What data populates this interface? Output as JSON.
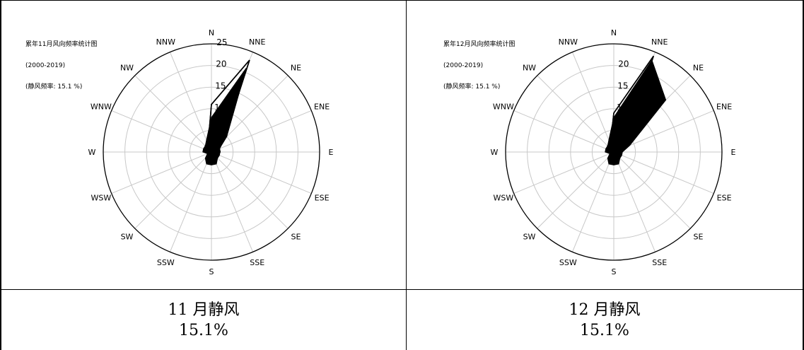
{
  "panels": [
    {
      "caption_month": "11 月静风",
      "caption_value": "15.1%",
      "chart_data": {
        "type": "wind-rose",
        "title": "累年11月风向频率统计图",
        "subtitle": "(2000-2019)",
        "calm_label": "(静风频率: 15.1 %)",
        "directions": [
          "N",
          "NNE",
          "NE",
          "ENE",
          "E",
          "ESE",
          "SE",
          "SSE",
          "S",
          "SSW",
          "SW",
          "WSW",
          "W",
          "WNW",
          "NW",
          "NNW"
        ],
        "radial_ticks": [
          5,
          10,
          15,
          20,
          25
        ],
        "rmax": 25,
        "series": [
          {
            "style": "outline",
            "values": [
              11,
              23,
              4,
              2,
              2,
              1,
              1,
              2,
              2,
              2,
              1,
              1,
              1,
              1,
              2,
              2
            ]
          },
          {
            "style": "filled",
            "values": [
              8,
              21,
              5,
              2,
              2,
              2,
              2,
              3,
              3,
              3,
              2,
              1,
              2,
              2,
              2,
              3
            ]
          }
        ]
      }
    },
    {
      "caption_month": "12 月静风",
      "caption_value": "15.1%",
      "chart_data": {
        "type": "wind-rose",
        "title": "累年12月风向频率统计图",
        "subtitle": "(2000-2019)",
        "calm_label": "(静风频率: 15.1 %)",
        "directions": [
          "N",
          "NNE",
          "NE",
          "ENE",
          "E",
          "ESE",
          "SE",
          "SSE",
          "S",
          "SSW",
          "SW",
          "WSW",
          "W",
          "WNW",
          "NW",
          "NNW"
        ],
        "radial_ticks": [
          5,
          10,
          15,
          20
        ],
        "rmax": 25,
        "series": [
          {
            "style": "outline",
            "values": [
              9,
              24,
              4,
              2,
              1,
              1,
              1,
              2,
              2,
              2,
              1,
              1,
              1,
              1,
              2,
              2
            ]
          },
          {
            "style": "filled",
            "values": [
              8,
              23,
              17,
              4,
              2,
              2,
              2,
              3,
              3,
              3,
              2,
              1,
              2,
              2,
              2,
              3
            ]
          }
        ]
      }
    }
  ]
}
